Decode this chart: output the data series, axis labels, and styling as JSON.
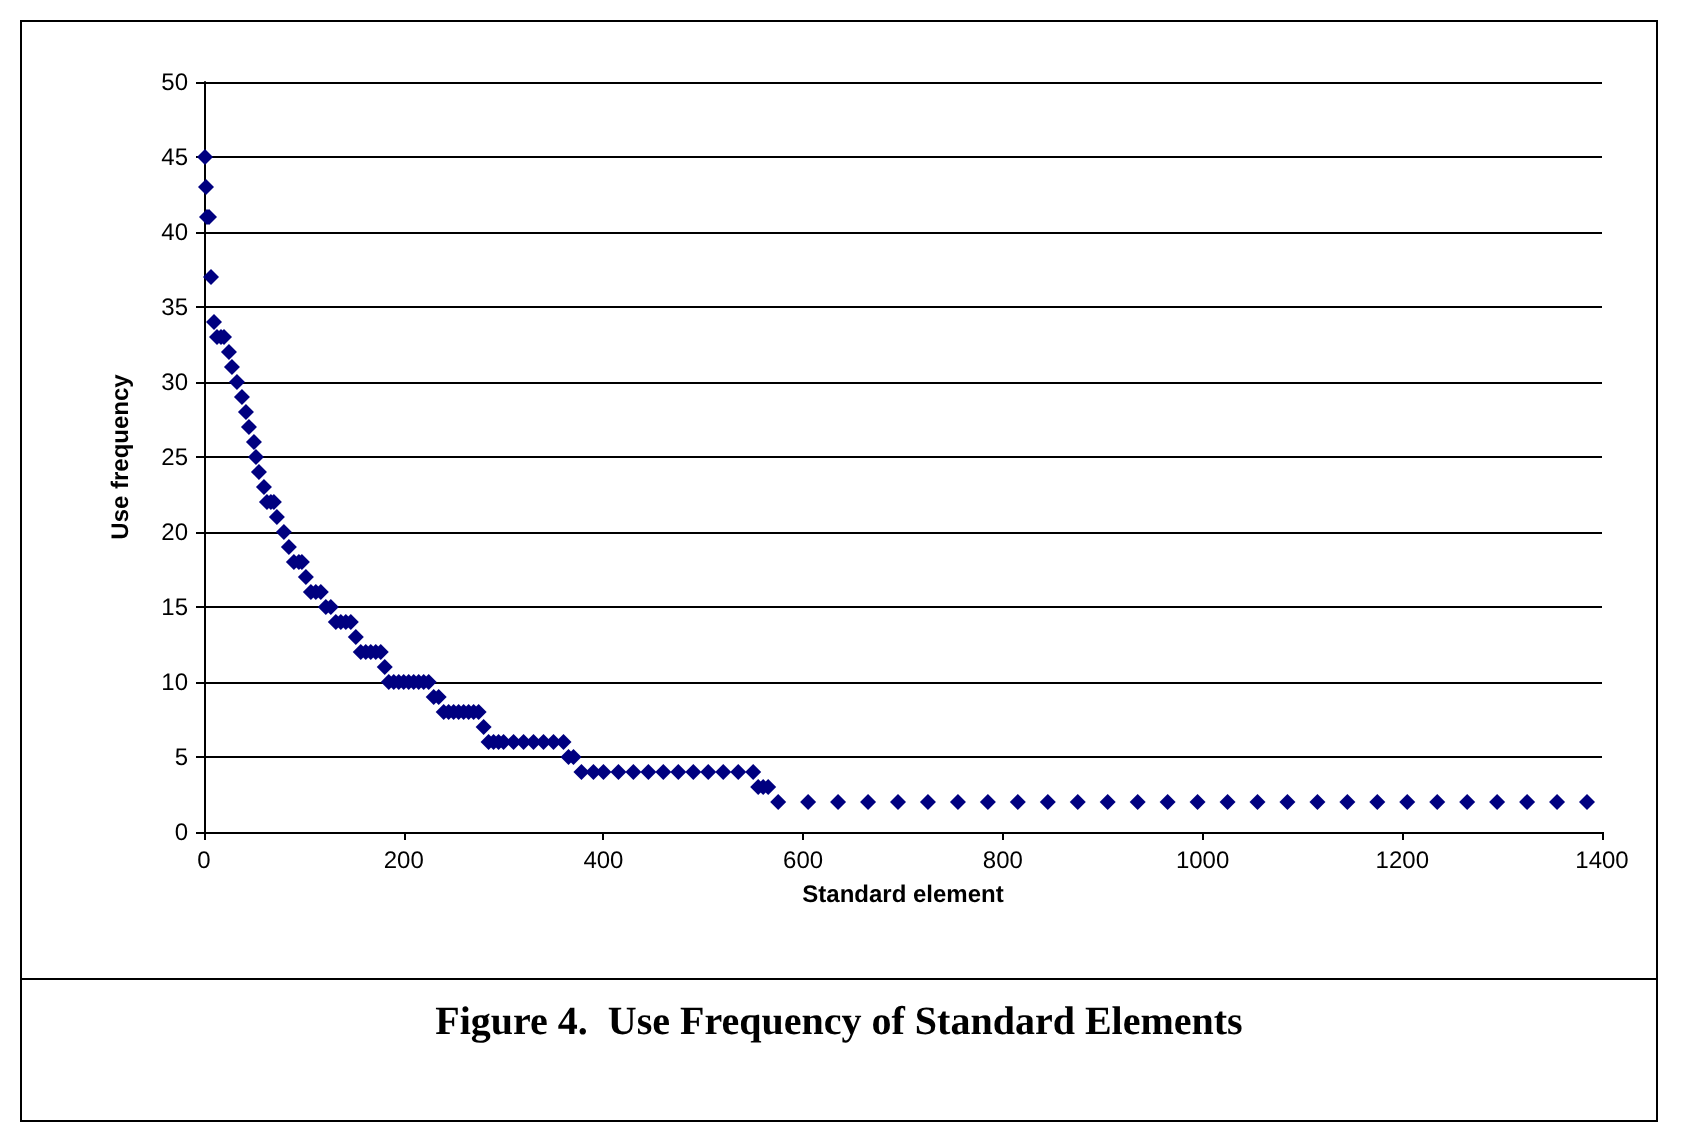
{
  "chart_data": {
    "type": "scatter",
    "xlabel": "Standard element",
    "ylabel": "Use frequency",
    "annotations": [
      "Figure 4.  Use Frequency of Standard Elements"
    ],
    "xlim": [
      0,
      1400
    ],
    "xticks": [
      0,
      200,
      400,
      600,
      800,
      1000,
      1200,
      1400
    ],
    "ylim": [
      0,
      50
    ],
    "yticks": [
      0,
      5,
      10,
      15,
      20,
      25,
      30,
      35,
      40,
      45,
      50
    ],
    "grid": "y",
    "marker": "diamond",
    "series": [
      {
        "color": "#000080",
        "x": [
          1,
          2,
          3,
          5,
          7,
          10,
          13,
          17,
          20,
          25,
          28,
          33,
          38,
          42,
          45,
          50,
          52,
          55,
          60,
          63,
          67,
          70,
          73,
          80,
          85,
          90,
          95,
          98,
          102,
          107,
          112,
          117,
          122,
          127,
          132,
          137,
          142,
          147,
          152,
          157,
          162,
          167,
          172,
          177,
          181,
          185,
          190,
          195,
          200,
          205,
          210,
          215,
          220,
          225,
          230,
          235,
          240,
          245,
          250,
          255,
          260,
          265,
          270,
          275,
          280,
          285,
          290,
          295,
          300,
          310,
          320,
          330,
          340,
          350,
          360,
          365,
          370,
          378,
          390,
          400,
          415,
          430,
          445,
          460,
          475,
          490,
          505,
          520,
          535,
          550,
          555,
          560,
          565,
          575,
          605,
          635,
          665,
          695,
          725,
          755,
          785,
          815,
          845,
          875,
          905,
          935,
          965,
          995,
          1025,
          1055,
          1085,
          1115,
          1145,
          1175,
          1205,
          1235,
          1265,
          1295,
          1325,
          1355,
          1385
        ],
        "values": [
          45,
          43,
          41,
          41,
          37,
          34,
          33,
          33,
          33,
          32,
          31,
          30,
          29,
          28,
          27,
          26,
          25,
          24,
          23,
          22,
          22,
          22,
          21,
          20,
          19,
          18,
          18,
          18,
          17,
          16,
          16,
          16,
          15,
          15,
          14,
          14,
          14,
          14,
          13,
          12,
          12,
          12,
          12,
          12,
          11,
          10,
          10,
          10,
          10,
          10,
          10,
          10,
          10,
          10,
          9,
          9,
          8,
          8,
          8,
          8,
          8,
          8,
          8,
          8,
          7,
          6,
          6,
          6,
          6,
          6,
          6,
          6,
          6,
          6,
          6,
          5,
          5,
          4,
          4,
          4,
          4,
          4,
          4,
          4,
          4,
          4,
          4,
          4,
          4,
          4,
          3,
          3,
          3,
          2,
          2,
          2,
          2,
          2,
          2,
          2,
          2,
          2,
          2,
          2,
          2,
          2,
          2,
          2,
          2,
          2,
          2,
          2,
          2,
          2,
          2,
          2,
          2,
          2,
          2,
          2,
          2
        ]
      }
    ]
  }
}
